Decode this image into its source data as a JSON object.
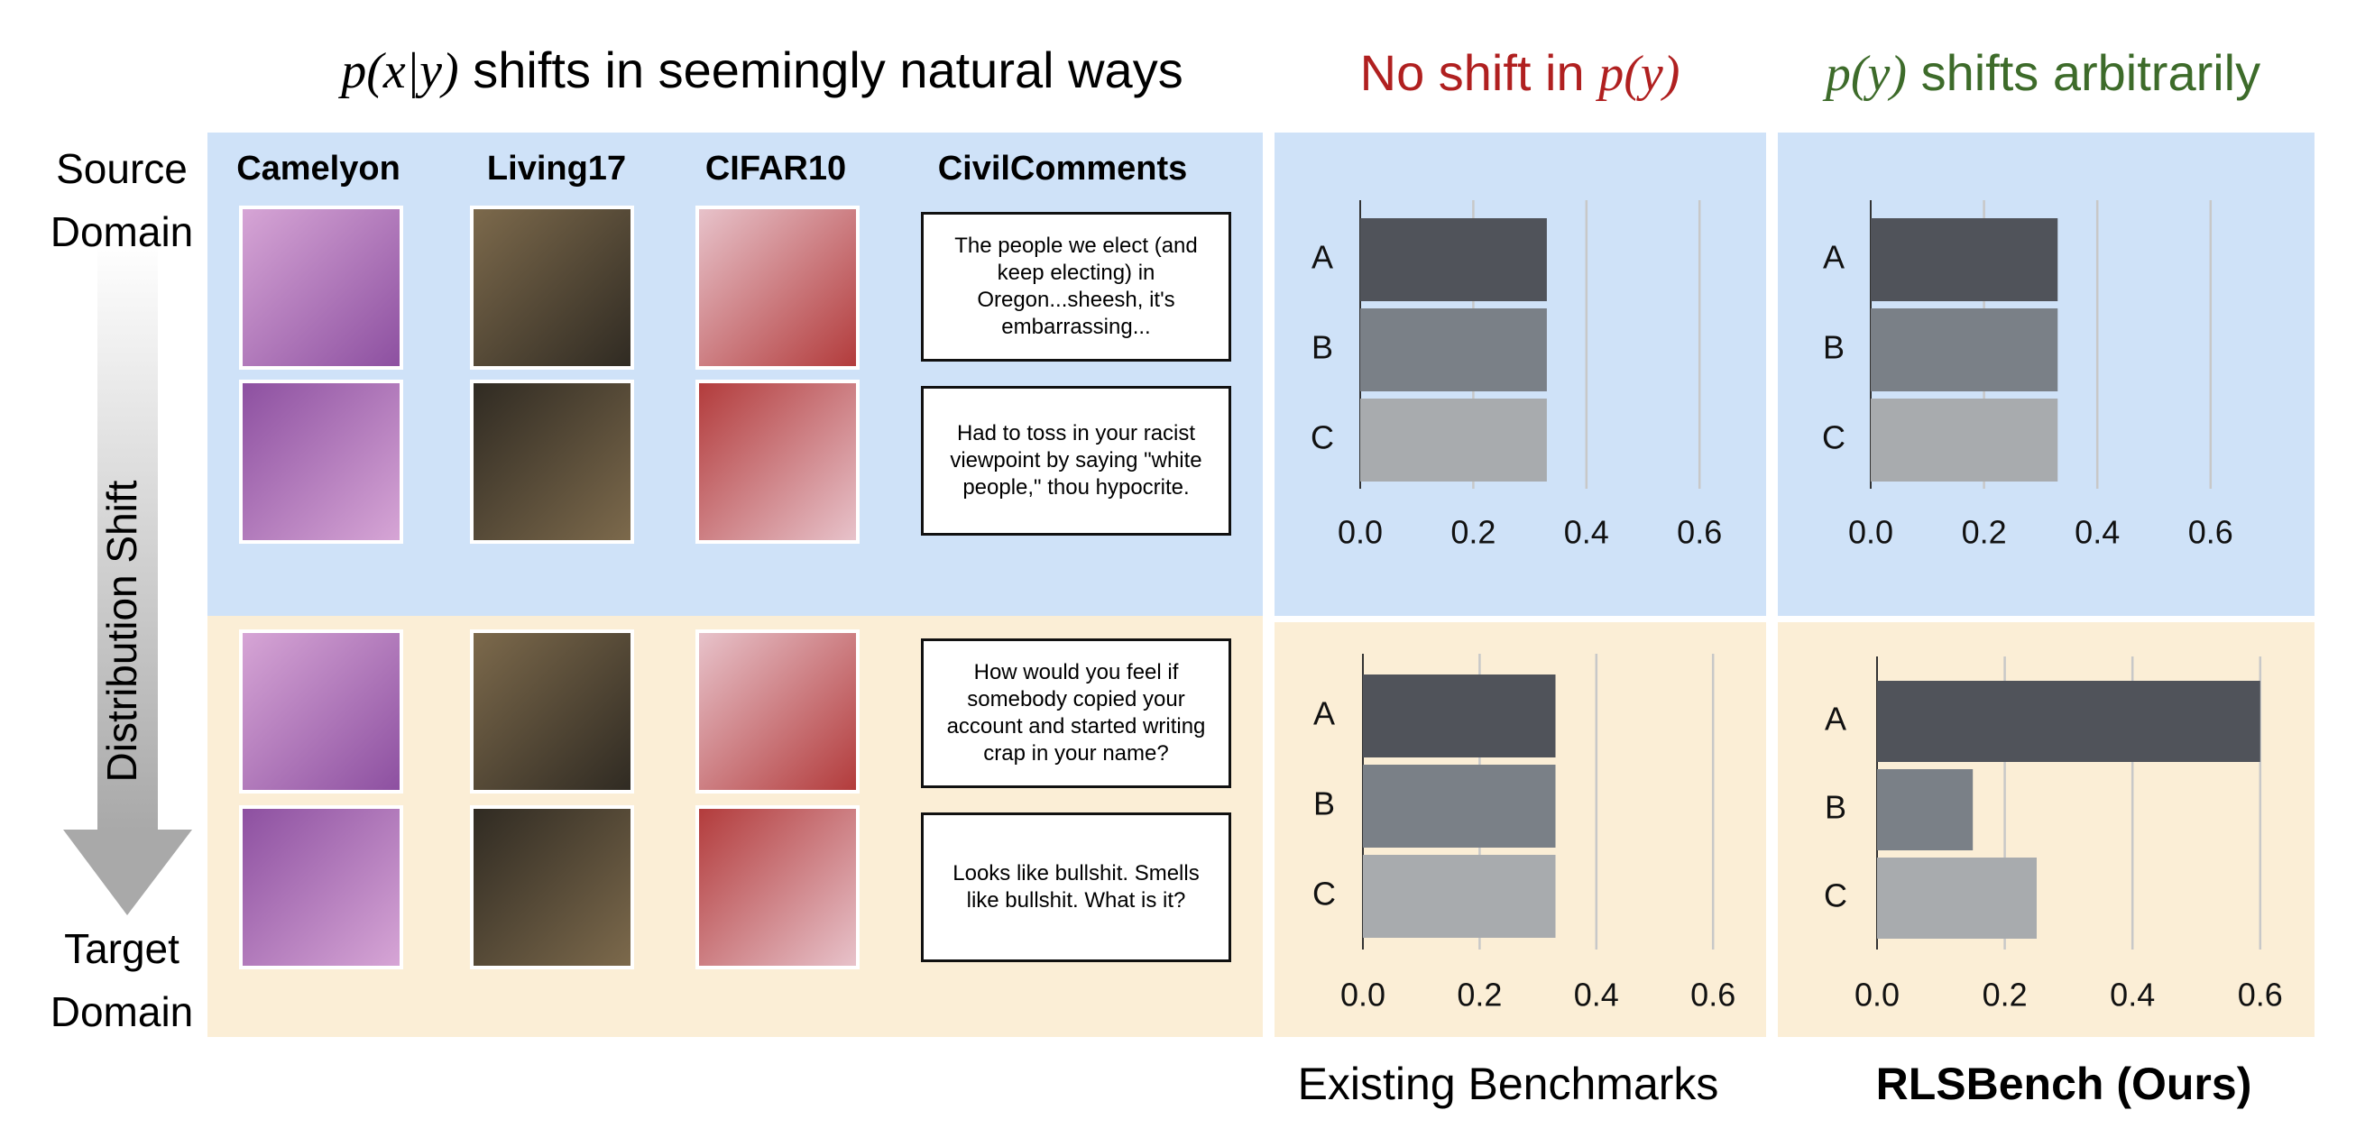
{
  "header": {
    "left_math": "p(x|y)",
    "left_text": "shifts in seemingly natural ways",
    "mid_text": "No shift in",
    "mid_math": "p(y)",
    "right_math": "p(y)",
    "right_text": "shifts arbitrarily"
  },
  "row_labels": {
    "source": "Source Domain",
    "target": "Target Domain",
    "shift": "Distribution Shift"
  },
  "columns": [
    "Camelyon",
    "Living17",
    "CIFAR10",
    "CivilComments"
  ],
  "comments": [
    "The people we elect (and keep electing) in Oregon...sheesh, it's embarrassing...",
    "Had to toss in your racist viewpoint by saying \"white people,\" thou hypocrite.",
    "How would you feel if somebody copied your account and started writing crap in your name?",
    "Looks like bullshit. Smells like bullshit. What is it?"
  ],
  "footer": {
    "existing": "Existing Benchmarks",
    "ours": "RLSBench (Ours)"
  },
  "chart_data": [
    {
      "type": "bar",
      "orientation": "horizontal",
      "categories": [
        "A",
        "B",
        "C"
      ],
      "values": [
        0.33,
        0.33,
        0.33
      ],
      "colors": [
        "#50535a",
        "#7a8087",
        "#a8abae"
      ],
      "xlim": [
        0,
        0.7
      ],
      "xticks": [
        {
          "value": 0,
          "label": "0.0"
        },
        0.2,
        0.4,
        0.6
      ],
      "grid": true
    },
    {
      "type": "bar",
      "orientation": "horizontal",
      "categories": [
        "A",
        "B",
        "C"
      ],
      "values": [
        0.33,
        0.33,
        0.33
      ],
      "colors": [
        "#50535a",
        "#7a8087",
        "#a8abae"
      ],
      "xlim": [
        0,
        0.7
      ],
      "xticks": [
        {
          "value": 0,
          "label": "0.0"
        },
        0.2,
        0.4,
        0.6
      ],
      "grid": true
    },
    {
      "type": "bar",
      "orientation": "horizontal",
      "categories": [
        "A",
        "B",
        "C"
      ],
      "values": [
        0.33,
        0.33,
        0.33
      ],
      "colors": [
        "#50535a",
        "#7a8087",
        "#a8abae"
      ],
      "xlim": [
        0,
        0.7
      ],
      "xticks": [
        {
          "value": 0,
          "label": "0.0"
        },
        0.2,
        0.4,
        0.6
      ],
      "grid": true
    },
    {
      "type": "bar",
      "orientation": "horizontal",
      "categories": [
        "A",
        "B",
        "C"
      ],
      "values": [
        0.6,
        0.15,
        0.25
      ],
      "colors": [
        "#50535a",
        "#7a8087",
        "#a8abae"
      ],
      "xlim": [
        0,
        0.7
      ],
      "xticks": [
        {
          "value": 0,
          "label": "0.0"
        },
        0.2,
        0.4,
        0.6
      ],
      "grid": true
    }
  ]
}
